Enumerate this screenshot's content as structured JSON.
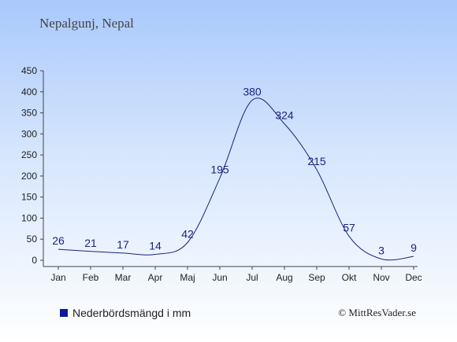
{
  "chart_data": {
    "type": "line",
    "title": "Nepalgunj, Nepal",
    "categories": [
      "Jan",
      "Feb",
      "Mar",
      "Apr",
      "Maj",
      "Jun",
      "Jul",
      "Aug",
      "Sep",
      "Okt",
      "Nov",
      "Dec"
    ],
    "series": [
      {
        "name": "Nederbördsmängd i mm",
        "values": [
          26,
          21,
          17,
          14,
          42,
          195,
          380,
          324,
          215,
          57,
          3,
          9
        ]
      }
    ],
    "yticks": [
      0,
      50,
      100,
      150,
      200,
      250,
      300,
      350,
      400,
      450
    ],
    "ylim": [
      0,
      450
    ],
    "grid": false,
    "legend_position": "bottom-left",
    "line_color": "#1a237e",
    "label_color": "#1a237e"
  },
  "footer": {
    "copyright": "© MittResVader.se"
  }
}
